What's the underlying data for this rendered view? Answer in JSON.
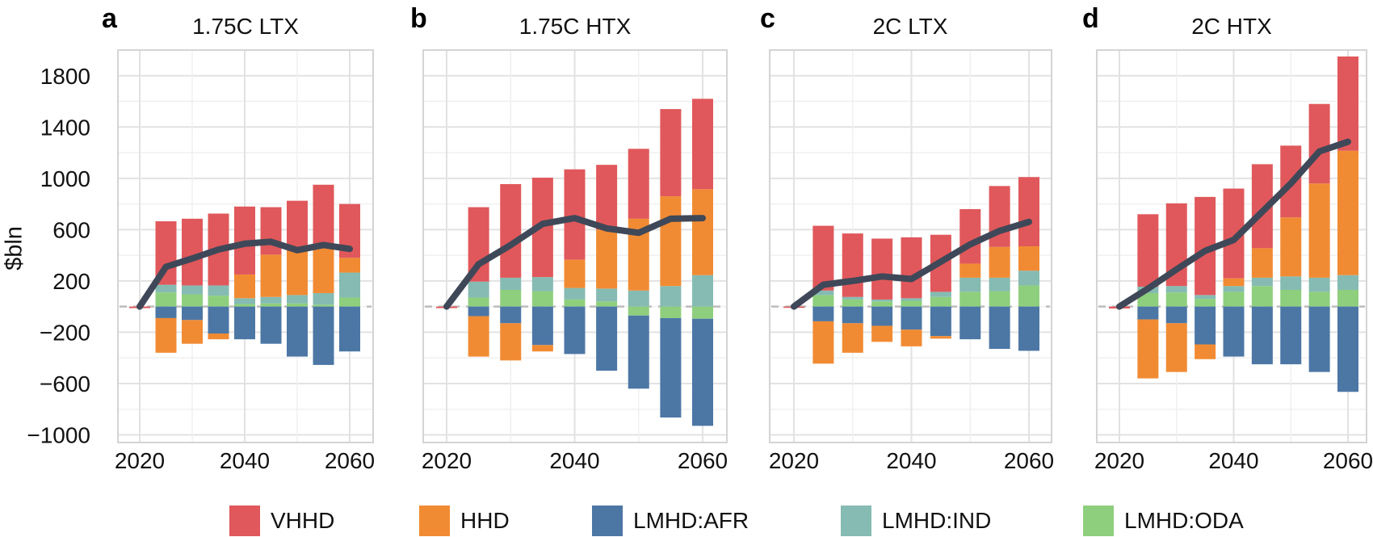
{
  "y_axis": {
    "label": "$bln",
    "ticks": [
      1800,
      1400,
      1000,
      600,
      200,
      -200,
      -600,
      -1000
    ],
    "tick_labels": [
      "1800",
      "1400",
      "1000",
      "600",
      "200",
      "−200",
      "−600",
      "−1000"
    ],
    "range": [
      -1060,
      2000
    ],
    "gridline_step": 200,
    "zero_line": "dashed"
  },
  "x_axis": {
    "ticks": [
      2020,
      2040,
      2060
    ],
    "tick_labels": [
      "2020",
      "2040",
      "2060"
    ],
    "gridline_years": [
      2020,
      2030,
      2040,
      2050,
      2060
    ]
  },
  "legend": {
    "items": [
      {
        "label": "VHHD",
        "color": "#E0585B"
      },
      {
        "label": "HHD",
        "color": "#F18B33"
      },
      {
        "label": "LMHD:AFR",
        "color": "#4C77A5"
      },
      {
        "label": "LMHD:IND",
        "color": "#85BBB2"
      },
      {
        "label": "LMHD:ODA",
        "color": "#8ECF7D"
      }
    ]
  },
  "chart_data": [
    {
      "panel_letter": "a",
      "title": "1.75C LTX",
      "type": "bar",
      "stacked": true,
      "ylabel": "$bln",
      "ylim": [
        -1060,
        2000
      ],
      "legend_position": "bottom",
      "grid": true,
      "categories": [
        2020,
        2025,
        2030,
        2035,
        2040,
        2045,
        2050,
        2055,
        2060
      ],
      "series": [
        {
          "name": "VHHD",
          "color": "#E0585B",
          "values": [
            -12,
            495,
            520,
            560,
            530,
            370,
            390,
            480,
            420
          ]
        },
        {
          "name": "HHD",
          "color": "#F18B33",
          "values": [
            0,
            -270,
            -185,
            -45,
            185,
            330,
            345,
            365,
            115
          ]
        },
        {
          "name": "LMHD:AFR",
          "color": "#4C77A5",
          "values": [
            0,
            -90,
            -105,
            -210,
            -255,
            -290,
            -390,
            -455,
            -350
          ]
        },
        {
          "name": "LMHD:IND",
          "color": "#85BBB2",
          "values": [
            0,
            60,
            70,
            80,
            45,
            50,
            65,
            90,
            195
          ]
        },
        {
          "name": "LMHD:ODA",
          "color": "#8ECF7D",
          "values": [
            0,
            110,
            95,
            85,
            20,
            25,
            25,
            15,
            70
          ]
        }
      ],
      "net_line": {
        "name": "net total",
        "color": "#3F4858",
        "values": [
          0,
          310,
          375,
          445,
          490,
          505,
          440,
          480,
          450
        ]
      }
    },
    {
      "panel_letter": "b",
      "title": "1.75C HTX",
      "type": "bar",
      "stacked": true,
      "ylabel": "$bln",
      "ylim": [
        -1060,
        2000
      ],
      "legend_position": "bottom",
      "grid": true,
      "categories": [
        2020,
        2025,
        2030,
        2035,
        2040,
        2045,
        2050,
        2055,
        2060
      ],
      "series": [
        {
          "name": "VHHD",
          "color": "#E0585B",
          "values": [
            -12,
            580,
            730,
            775,
            705,
            505,
            545,
            680,
            705
          ]
        },
        {
          "name": "HHD",
          "color": "#F18B33",
          "values": [
            0,
            -315,
            -290,
            -50,
            220,
            460,
            560,
            700,
            670
          ]
        },
        {
          "name": "LMHD:AFR",
          "color": "#4C77A5",
          "values": [
            0,
            -75,
            -130,
            -300,
            -370,
            -500,
            -570,
            -775,
            -835
          ]
        },
        {
          "name": "LMHD:IND",
          "color": "#85BBB2",
          "values": [
            0,
            125,
            95,
            110,
            90,
            100,
            125,
            160,
            245
          ]
        },
        {
          "name": "LMHD:ODA",
          "color": "#8ECF7D",
          "values": [
            0,
            70,
            130,
            120,
            55,
            40,
            -70,
            -90,
            -95
          ]
        }
      ],
      "net_line": {
        "name": "net total",
        "color": "#3F4858",
        "values": [
          0,
          330,
          480,
          645,
          690,
          610,
          575,
          685,
          690
        ]
      }
    },
    {
      "panel_letter": "c",
      "title": "2C LTX",
      "type": "bar",
      "stacked": true,
      "ylabel": "$bln",
      "ylim": [
        -1060,
        2000
      ],
      "legend_position": "bottom",
      "grid": true,
      "categories": [
        2020,
        2025,
        2030,
        2035,
        2040,
        2045,
        2050,
        2055,
        2060
      ],
      "series": [
        {
          "name": "VHHD",
          "color": "#E0585B",
          "values": [
            -10,
            505,
            495,
            475,
            475,
            445,
            425,
            475,
            540
          ]
        },
        {
          "name": "HHD",
          "color": "#F18B33",
          "values": [
            0,
            -330,
            -230,
            -125,
            -130,
            -20,
            110,
            240,
            190
          ]
        },
        {
          "name": "LMHD:AFR",
          "color": "#4C77A5",
          "values": [
            0,
            -115,
            -130,
            -150,
            -180,
            -230,
            -255,
            -330,
            -345
          ]
        },
        {
          "name": "LMHD:IND",
          "color": "#85BBB2",
          "values": [
            0,
            35,
            20,
            15,
            20,
            40,
            110,
            105,
            115
          ]
        },
        {
          "name": "LMHD:ODA",
          "color": "#8ECF7D",
          "values": [
            0,
            90,
            55,
            40,
            45,
            75,
            115,
            120,
            165
          ]
        }
      ],
      "net_line": {
        "name": "net total",
        "color": "#3F4858",
        "values": [
          0,
          170,
          200,
          235,
          215,
          350,
          485,
          590,
          660
        ]
      }
    },
    {
      "panel_letter": "d",
      "title": "2C HTX",
      "type": "bar",
      "stacked": true,
      "ylabel": "$bln",
      "ylim": [
        -1060,
        2000
      ],
      "legend_position": "bottom",
      "grid": true,
      "categories": [
        2020,
        2025,
        2030,
        2035,
        2040,
        2045,
        2050,
        2055,
        2060
      ],
      "series": [
        {
          "name": "VHHD",
          "color": "#E0585B",
          "values": [
            -15,
            565,
            645,
            765,
            700,
            655,
            560,
            620,
            735
          ]
        },
        {
          "name": "HHD",
          "color": "#F18B33",
          "values": [
            0,
            -460,
            -380,
            -115,
            60,
            230,
            460,
            735,
            970
          ]
        },
        {
          "name": "LMHD:AFR",
          "color": "#4C77A5",
          "values": [
            0,
            -100,
            -130,
            -295,
            -390,
            -450,
            -450,
            -510,
            -665
          ]
        },
        {
          "name": "LMHD:IND",
          "color": "#85BBB2",
          "values": [
            0,
            50,
            50,
            30,
            45,
            65,
            105,
            110,
            115
          ]
        },
        {
          "name": "LMHD:ODA",
          "color": "#8ECF7D",
          "values": [
            0,
            105,
            110,
            60,
            115,
            160,
            130,
            115,
            130
          ]
        }
      ],
      "net_line": {
        "name": "net total",
        "color": "#3F4858",
        "values": [
          0,
          140,
          290,
          435,
          520,
          740,
          960,
          1210,
          1285
        ]
      }
    }
  ]
}
